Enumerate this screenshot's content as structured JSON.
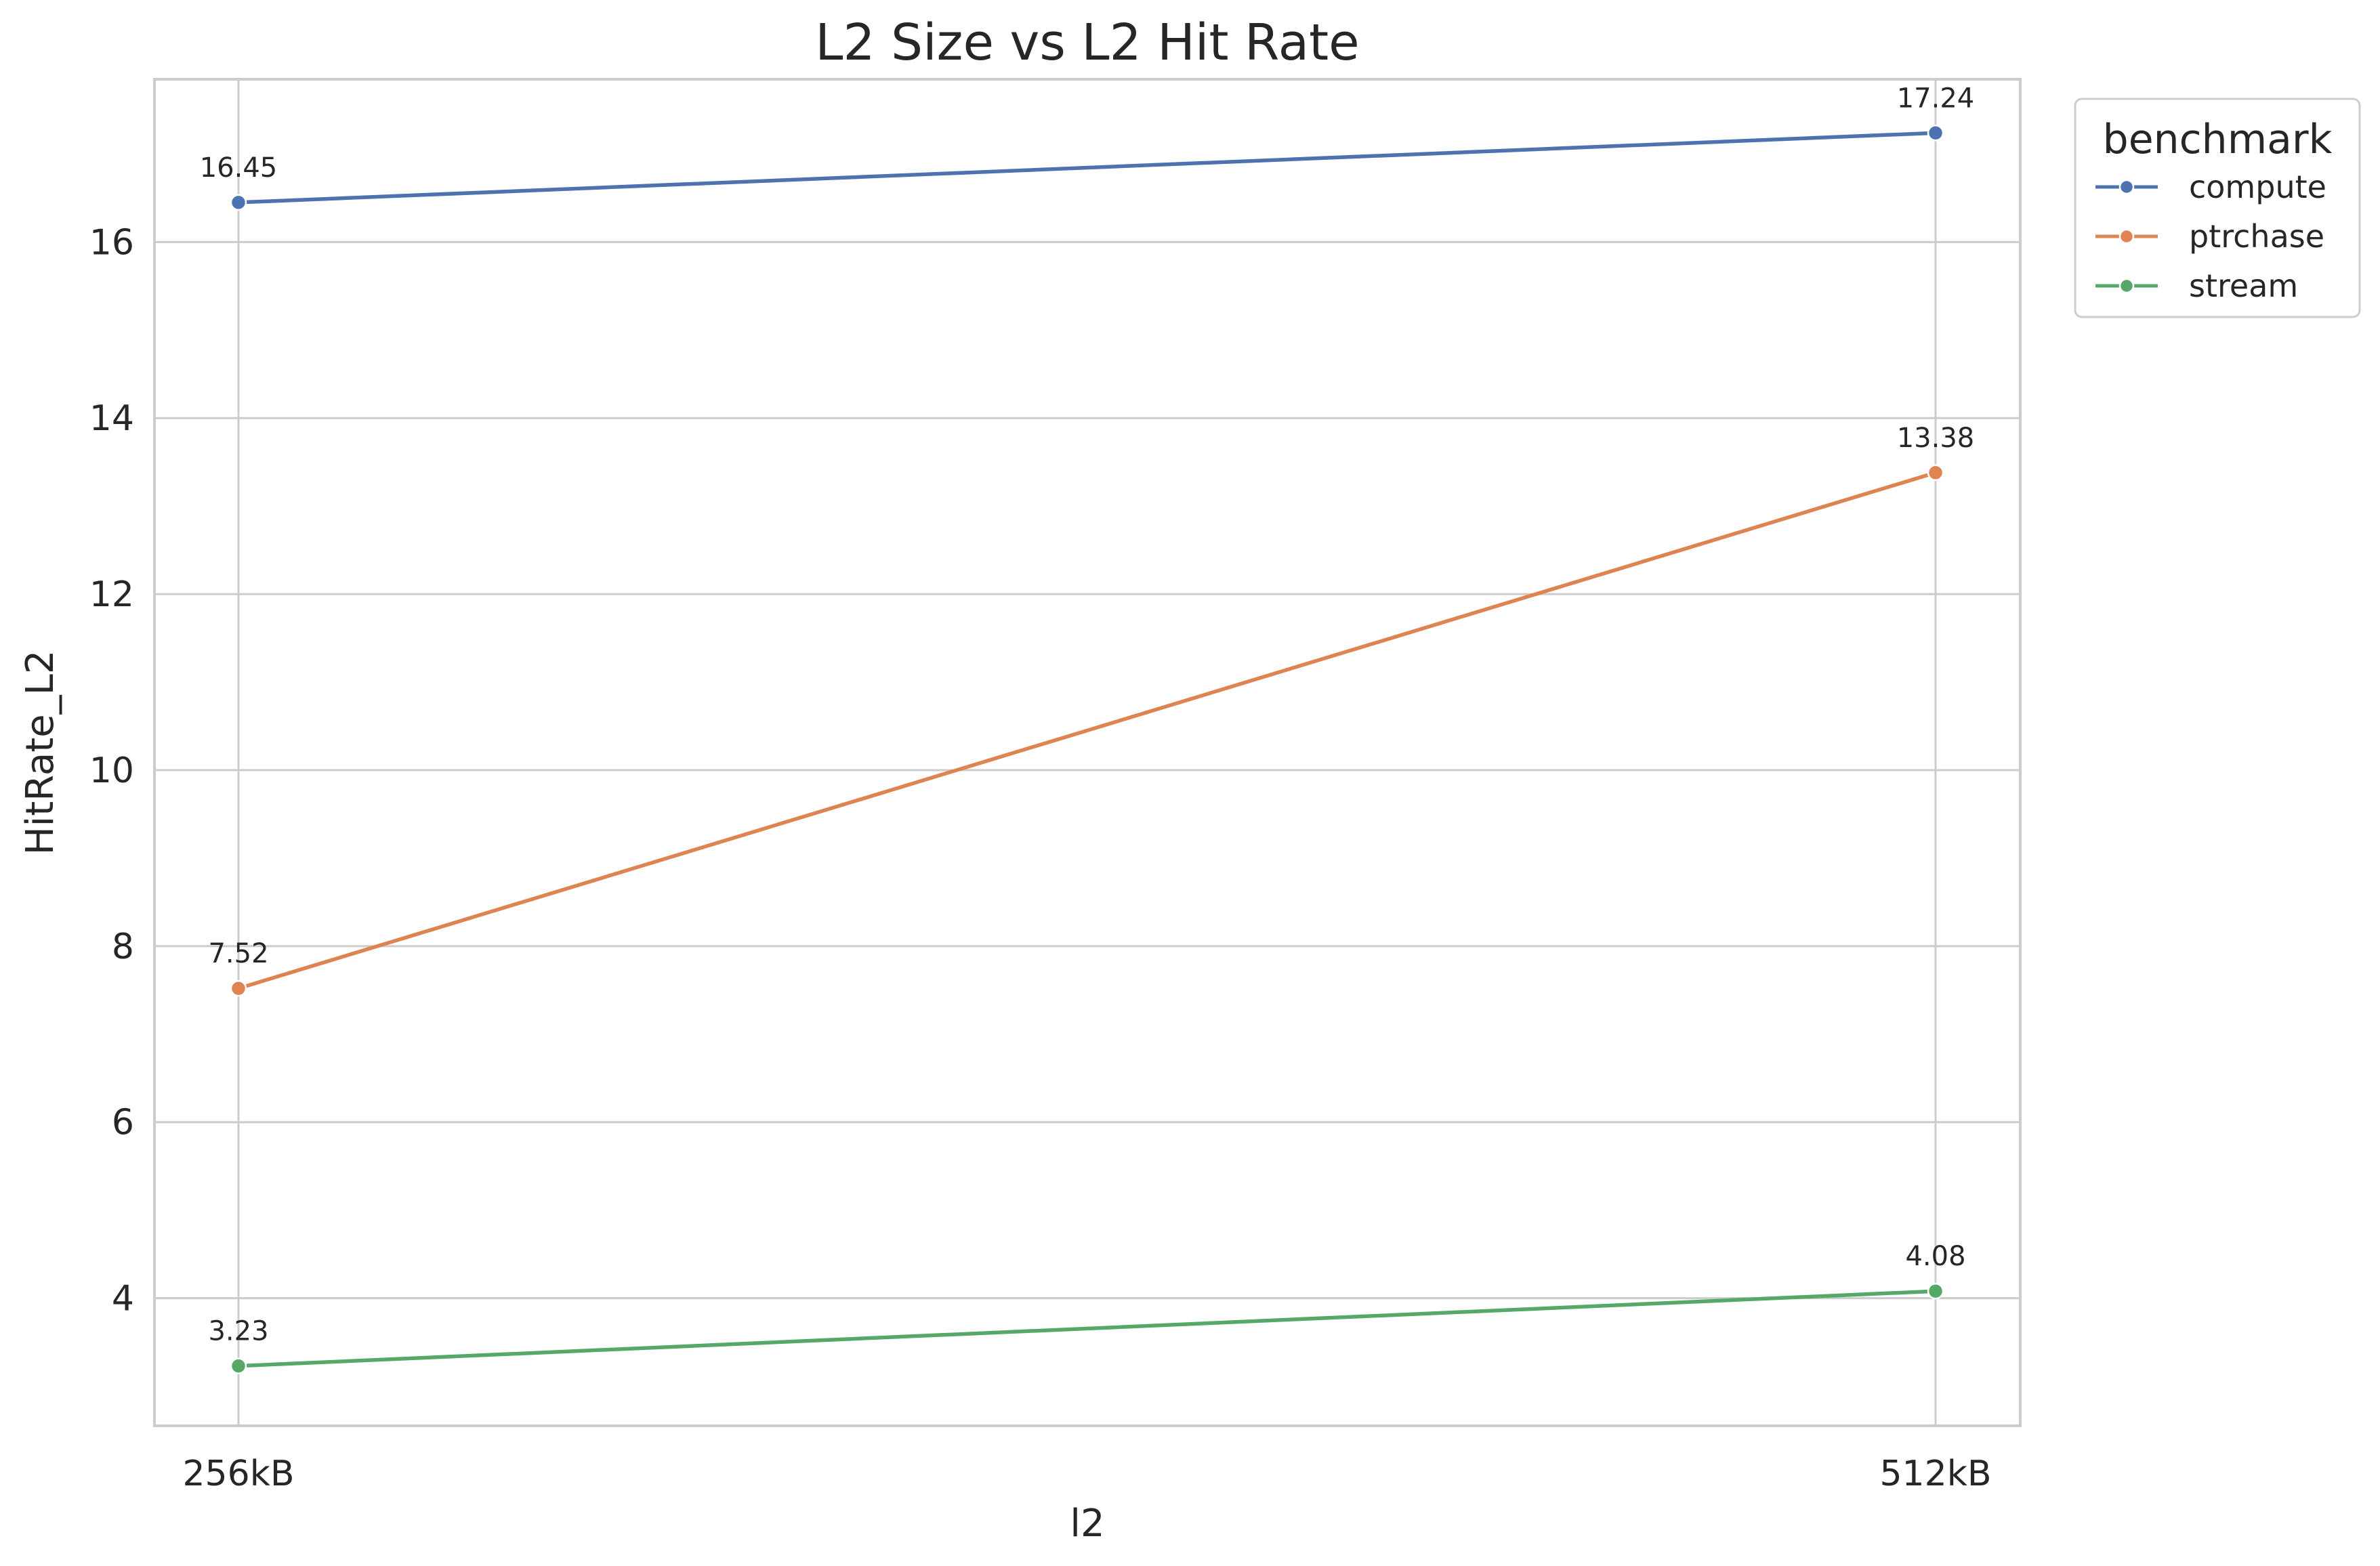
{
  "chart_data": {
    "type": "line",
    "title": "L2 Size vs L2 Hit Rate",
    "xlabel": "l2",
    "ylabel": "HitRate_L2",
    "categories": [
      "256kB",
      "512kB"
    ],
    "ylim": [
      2.55,
      17.85
    ],
    "yticks": [
      4,
      6,
      8,
      10,
      12,
      14,
      16
    ],
    "grid": true,
    "legend": {
      "title": "benchmark",
      "placement": "outside-top-right"
    },
    "series": [
      {
        "name": "compute",
        "color": "#4c72b0",
        "values": [
          16.45,
          17.24
        ],
        "labels": [
          "16.45",
          "17.24"
        ]
      },
      {
        "name": "ptrchase",
        "color": "#dd8452",
        "values": [
          7.52,
          13.38
        ],
        "labels": [
          "7.52",
          "13.38"
        ]
      },
      {
        "name": "stream",
        "color": "#55a868",
        "values": [
          3.23,
          4.08
        ],
        "labels": [
          "3.23",
          "4.08"
        ]
      }
    ]
  }
}
